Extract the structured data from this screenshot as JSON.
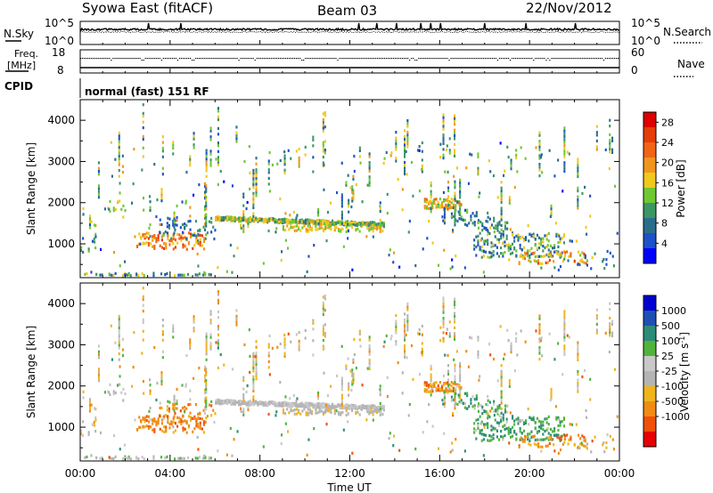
{
  "header": {
    "station": "Syowa East (fitACF)",
    "beam": "Beam 03",
    "date": "22/Nov/2012"
  },
  "aux_panels": {
    "nsky_label": "N.Sky",
    "nsky_ticks": [
      "10^5",
      "10^0"
    ],
    "nsearch_label": "N.Search",
    "nsearch_ticks": [
      "10^5",
      "10^0"
    ],
    "freq_label_1": "Freq.",
    "freq_label_2": "[MHz]",
    "freq_ticks": [
      "18",
      "8"
    ],
    "nave_label": "Nave",
    "nave_ticks": [
      "60",
      "0"
    ],
    "cpid_label": "CPID",
    "cpid_value": "normal (fast) 151 RF"
  },
  "colors": {
    "power": [
      "#0000ff",
      "#1e50c8",
      "#2a6e8c",
      "#3c9664",
      "#6ec832",
      "#f0c81e",
      "#f0961e",
      "#f06414",
      "#e63c0a",
      "#dc0000"
    ],
    "velocity": [
      "#0000d2",
      "#1e50b4",
      "#2d8c78",
      "#50b43c",
      "#c8c8c8",
      "#b4b4b4",
      "#f0b41e",
      "#f08c14",
      "#f0500a",
      "#e60000"
    ]
  },
  "chart_data": [
    {
      "type": "heatmap",
      "panel": "power",
      "ylabel": "Slant Range [km]",
      "ylim": [
        180,
        4500
      ],
      "yticks": [
        1000,
        2000,
        3000,
        4000
      ],
      "xlim": [
        0,
        24
      ],
      "xticks": [
        "00:00",
        "04:00",
        "08:00",
        "12:00",
        "16:00",
        "20:00",
        "00:00"
      ],
      "colorbar_label": "Power [dB]",
      "colorbar_ticks": [
        "4",
        "8",
        "12",
        "16",
        "20",
        "24",
        "28"
      ],
      "colorbar_range": [
        0,
        30
      ]
    },
    {
      "type": "heatmap",
      "panel": "velocity",
      "ylabel": "Slant Range [km]",
      "ylim": [
        180,
        4500
      ],
      "yticks": [
        1000,
        2000,
        3000,
        4000
      ],
      "xlim": [
        0,
        24
      ],
      "xticks": [
        "00:00",
        "04:00",
        "08:00",
        "12:00",
        "16:00",
        "20:00",
        "00:00"
      ],
      "xlabel": "Time UT",
      "colorbar_label": "Velocity [m s",
      "colorbar_label_sup": "-1",
      "colorbar_label_end": "]",
      "colorbar_ticks": [
        "1000",
        "500",
        "100",
        "25",
        "-25",
        "-100",
        "-500",
        "-1000"
      ]
    }
  ]
}
